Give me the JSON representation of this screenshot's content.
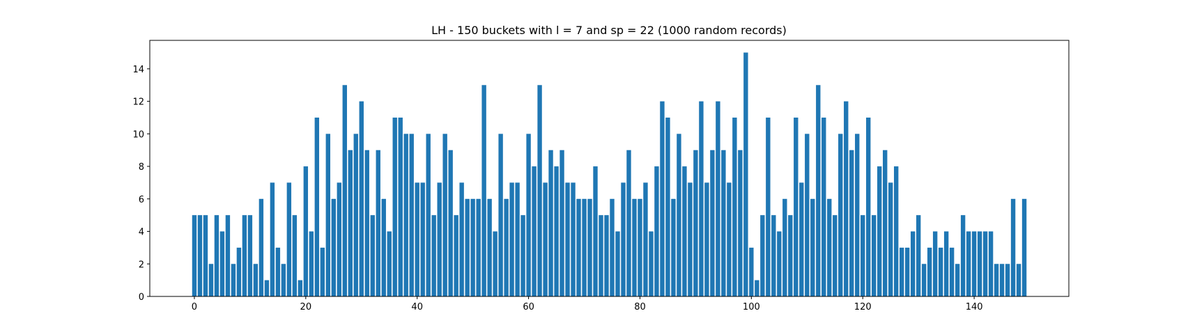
{
  "chart_data": {
    "type": "bar",
    "title": "LH - 150 buckets with l = 7 and sp = 22 (1000 random records)",
    "xlabel": "",
    "ylabel": "",
    "bar_color": "#1f77b4",
    "xlim": [
      -8,
      157
    ],
    "ylim": [
      0,
      15.75
    ],
    "xticks": [
      0,
      20,
      40,
      60,
      80,
      100,
      120,
      140
    ],
    "yticks": [
      0,
      2,
      4,
      6,
      8,
      10,
      12,
      14
    ],
    "grid": false,
    "x": [
      0,
      1,
      2,
      3,
      4,
      5,
      6,
      7,
      8,
      9,
      10,
      11,
      12,
      13,
      14,
      15,
      16,
      17,
      18,
      19,
      20,
      21,
      22,
      23,
      24,
      25,
      26,
      27,
      28,
      29,
      30,
      31,
      32,
      33,
      34,
      35,
      36,
      37,
      38,
      39,
      40,
      41,
      42,
      43,
      44,
      45,
      46,
      47,
      48,
      49,
      50,
      51,
      52,
      53,
      54,
      55,
      56,
      57,
      58,
      59,
      60,
      61,
      62,
      63,
      64,
      65,
      66,
      67,
      68,
      69,
      70,
      71,
      72,
      73,
      74,
      75,
      76,
      77,
      78,
      79,
      80,
      81,
      82,
      83,
      84,
      85,
      86,
      87,
      88,
      89,
      90,
      91,
      92,
      93,
      94,
      95,
      96,
      97,
      98,
      99,
      100,
      101,
      102,
      103,
      104,
      105,
      106,
      107,
      108,
      109,
      110,
      111,
      112,
      113,
      114,
      115,
      116,
      117,
      118,
      119,
      120,
      121,
      122,
      123,
      124,
      125,
      126,
      127,
      128,
      129,
      130,
      131,
      132,
      133,
      134,
      135,
      136,
      137,
      138,
      139,
      140,
      141,
      142,
      143,
      144,
      145,
      146,
      147,
      148,
      149
    ],
    "values": [
      5,
      5,
      5,
      2,
      5,
      4,
      5,
      2,
      3,
      5,
      5,
      2,
      6,
      1,
      7,
      3,
      2,
      7,
      5,
      1,
      8,
      4,
      11,
      3,
      10,
      6,
      7,
      13,
      9,
      10,
      12,
      9,
      5,
      9,
      6,
      4,
      11,
      11,
      10,
      10,
      7,
      7,
      10,
      5,
      7,
      10,
      9,
      5,
      7,
      6,
      6,
      6,
      13,
      6,
      4,
      10,
      6,
      7,
      7,
      5,
      10,
      8,
      13,
      7,
      9,
      8,
      9,
      7,
      7,
      6,
      6,
      6,
      8,
      5,
      5,
      6,
      4,
      7,
      9,
      6,
      6,
      7,
      4,
      8,
      12,
      11,
      6,
      10,
      8,
      7,
      9,
      12,
      7,
      9,
      12,
      9,
      7,
      11,
      9,
      15,
      3,
      1,
      5,
      11,
      5,
      4,
      6,
      5,
      11,
      7,
      10,
      6,
      13,
      11,
      6,
      5,
      10,
      12,
      9,
      10,
      5,
      11,
      5,
      8,
      9,
      7,
      8,
      3,
      3,
      4,
      5,
      2,
      3,
      4,
      3,
      4,
      3,
      2,
      5,
      4,
      4,
      4,
      4,
      4,
      2,
      2,
      2,
      6,
      2,
      6
    ]
  }
}
